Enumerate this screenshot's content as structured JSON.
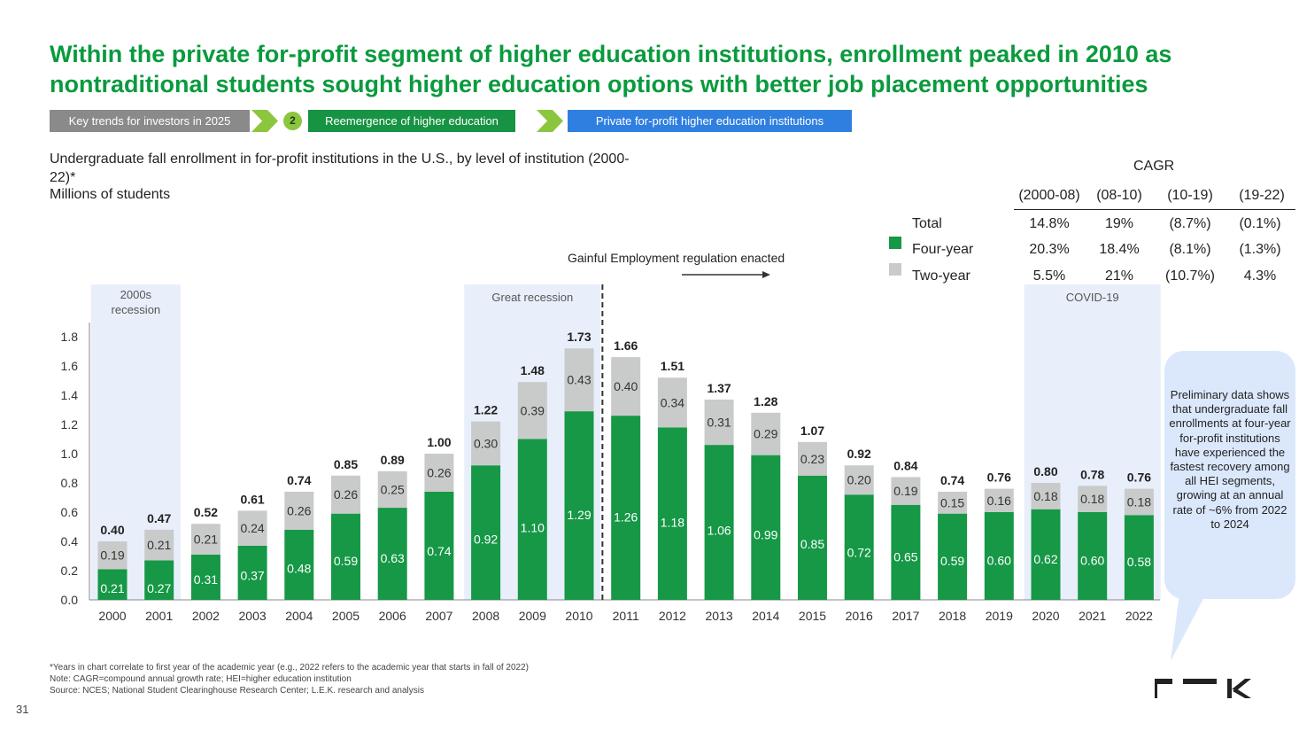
{
  "title": "Within the private for-profit segment of higher education institutions, enrollment peaked in 2010 as nontraditional students sought higher education options with better job placement opportunities",
  "breadcrumb": {
    "step1": "Key trends for investors in 2025",
    "step_number": "2",
    "step2": "Reemergence of higher education",
    "step3": "Private for-profit higher education institutions"
  },
  "subtitle": "Undergraduate fall enrollment in for-profit institutions in the U.S., by level of institution (2000-22)*",
  "units": "Millions of students",
  "cagr": {
    "title": "CAGR",
    "headers": [
      "(2000-08)",
      "(08-10)",
      "(10-19)",
      "(19-22)"
    ],
    "rows": [
      {
        "label": "Total",
        "values": [
          "14.8%",
          "19%",
          "(8.7%)",
          "(0.1%)"
        ]
      },
      {
        "label": "Four-year",
        "values": [
          "20.3%",
          "18.4%",
          "(8.1%)",
          "(1.3%)"
        ]
      },
      {
        "label": "Two-year",
        "values": [
          "5.5%",
          "21%",
          "(10.7%)",
          "4.3%"
        ]
      }
    ]
  },
  "annotations": {
    "gainful": "Gainful Employment regulation enacted",
    "recession2000": "2000s recession",
    "great_recession": "Great recession",
    "covid": "COVID-19"
  },
  "callout": "Preliminary data shows that undergraduate fall enrollments at four-year for-profit institutions have experienced the fastest recovery among all HEI segments, growing at an annual rate of ~6% from 2022 to 2024",
  "footnotes": {
    "f1": "*Years in chart correlate to first year of the academic year (e.g., 2022 refers to the academic year that starts in fall of 2022)",
    "note": "Note:   CAGR=compound annual growth rate; HEI=higher education institution",
    "source": "Source:   NCES; National Student Clearinghouse Research Center; L.E.K. research and analysis"
  },
  "page_number": "31",
  "colors": {
    "title_green": "#0a9a3e",
    "four_year": "#169846",
    "two_year": "#c9cbcb",
    "shade": "#e8effb"
  },
  "chart_data": {
    "type": "bar",
    "stacked": true,
    "categories": [
      "2000",
      "2001",
      "2002",
      "2003",
      "2004",
      "2005",
      "2006",
      "2007",
      "2008",
      "2009",
      "2010",
      "2011",
      "2012",
      "2013",
      "2014",
      "2015",
      "2016",
      "2017",
      "2018",
      "2019",
      "2020",
      "2021",
      "2022"
    ],
    "series": [
      {
        "name": "Four-year",
        "values": [
          0.21,
          0.27,
          0.31,
          0.37,
          0.48,
          0.59,
          0.63,
          0.74,
          0.92,
          1.1,
          1.29,
          1.26,
          1.18,
          1.06,
          0.99,
          0.85,
          0.72,
          0.65,
          0.59,
          0.6,
          0.62,
          0.6,
          0.58
        ],
        "labels": [
          "0.21",
          "0.27",
          "0.31",
          "0.37",
          "0.48",
          "0.59",
          "0.63",
          "0.74",
          "0.92",
          "1.10",
          "1.29",
          "1.26",
          "1.18",
          "1.06",
          "0.99",
          "0.85",
          "0.72",
          "0.65",
          "0.59",
          "0.60",
          "0.62",
          "0.60",
          "0.58"
        ]
      },
      {
        "name": "Two-year",
        "values": [
          0.19,
          0.21,
          0.21,
          0.24,
          0.26,
          0.26,
          0.25,
          0.26,
          0.3,
          0.39,
          0.43,
          0.4,
          0.34,
          0.31,
          0.29,
          0.23,
          0.2,
          0.19,
          0.15,
          0.16,
          0.18,
          0.18,
          0.18
        ],
        "labels": [
          "0.19",
          "0.21",
          "0.21",
          "0.24",
          "0.26",
          "0.26",
          "0.25",
          "0.26",
          "0.30",
          "0.39",
          "0.43",
          "0.40",
          "0.34",
          "0.31",
          "0.29",
          "0.23",
          "0.20",
          "0.19",
          "0.15",
          "0.16",
          "0.18",
          "0.18",
          "0.18"
        ]
      }
    ],
    "totals": [
      "0.40",
      "0.47",
      "0.52",
      "0.61",
      "0.74",
      "0.85",
      "0.89",
      "1.00",
      "1.22",
      "1.48",
      "1.73",
      "1.66",
      "1.51",
      "1.37",
      "1.28",
      "1.07",
      "0.92",
      "0.84",
      "0.74",
      "0.76",
      "0.80",
      "0.78",
      "0.76"
    ],
    "yticks": [
      "0.0",
      "0.2",
      "0.4",
      "0.6",
      "0.8",
      "1.0",
      "1.2",
      "1.4",
      "1.6",
      "1.8"
    ],
    "ylim": [
      0,
      1.8
    ],
    "shaded_periods": [
      {
        "label": "2000s recession",
        "from": "2000",
        "to": "2001"
      },
      {
        "label": "Great recession",
        "from": "2008",
        "to": "2010"
      },
      {
        "label": "COVID-19",
        "from": "2020",
        "to": "2022"
      }
    ],
    "event_line": {
      "between": [
        "2010",
        "2011"
      ],
      "label": "Gainful Employment regulation enacted"
    },
    "grid": false
  }
}
